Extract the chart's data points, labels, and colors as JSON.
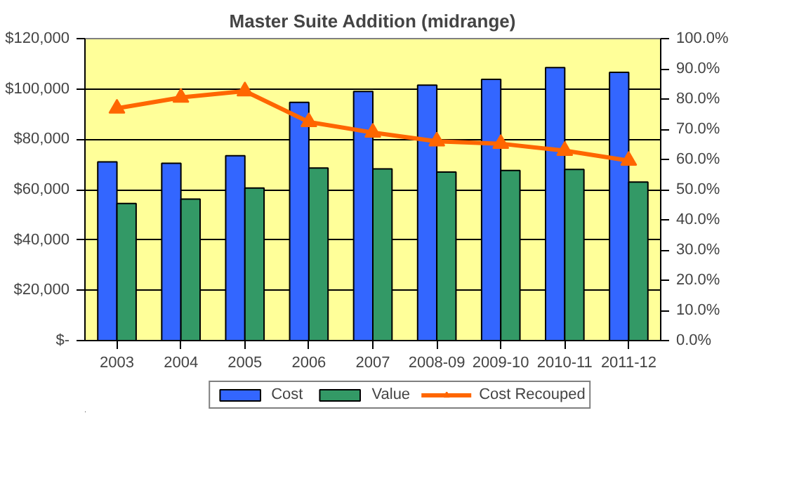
{
  "chart_data": {
    "type": "bar",
    "title": "Master Suite Addition (midrange)",
    "categories": [
      "2003",
      "2004",
      "2005",
      "2006",
      "2007",
      "2008-09",
      "2009-10",
      "2010-11",
      "2011-12"
    ],
    "series": [
      {
        "name": "Cost",
        "color": "#3366ff",
        "values": [
          71000,
          70500,
          73500,
          94700,
          99000,
          101500,
          103800,
          108500,
          106600
        ]
      },
      {
        "name": "Value",
        "color": "#339966",
        "values": [
          54500,
          56200,
          60600,
          68600,
          68200,
          67000,
          67600,
          68000,
          63000
        ]
      },
      {
        "name": "Cost Recouped",
        "type": "line",
        "axis": "y2",
        "color": "#ff6600",
        "marker": "triangle",
        "values": [
          76.9,
          80.5,
          82.6,
          72.4,
          68.9,
          66.0,
          65.2,
          62.9,
          59.6
        ]
      }
    ],
    "ylim": [
      0,
      120000
    ],
    "yticks": [
      {
        "value": 0,
        "label": "$-"
      },
      {
        "value": 20000,
        "label": "$20,000"
      },
      {
        "value": 40000,
        "label": "$40,000"
      },
      {
        "value": 60000,
        "label": "$60,000"
      },
      {
        "value": 80000,
        "label": "$80,000"
      },
      {
        "value": 100000,
        "label": "$100,000"
      },
      {
        "value": 120000,
        "label": "$120,000"
      }
    ],
    "y2lim": [
      0,
      100
    ],
    "y2ticks": [
      {
        "value": 0,
        "label": "0.0%"
      },
      {
        "value": 10,
        "label": "10.0%"
      },
      {
        "value": 20,
        "label": "20.0%"
      },
      {
        "value": 30,
        "label": "30.0%"
      },
      {
        "value": 40,
        "label": "40.0%"
      },
      {
        "value": 50,
        "label": "50.0%"
      },
      {
        "value": 60,
        "label": "60.0%"
      },
      {
        "value": 70,
        "label": "70.0%"
      },
      {
        "value": 80,
        "label": "80.0%"
      },
      {
        "value": 90,
        "label": "90.0%"
      },
      {
        "value": 100,
        "label": "100.0%"
      }
    ],
    "grid": "y",
    "legend": "bottom"
  }
}
